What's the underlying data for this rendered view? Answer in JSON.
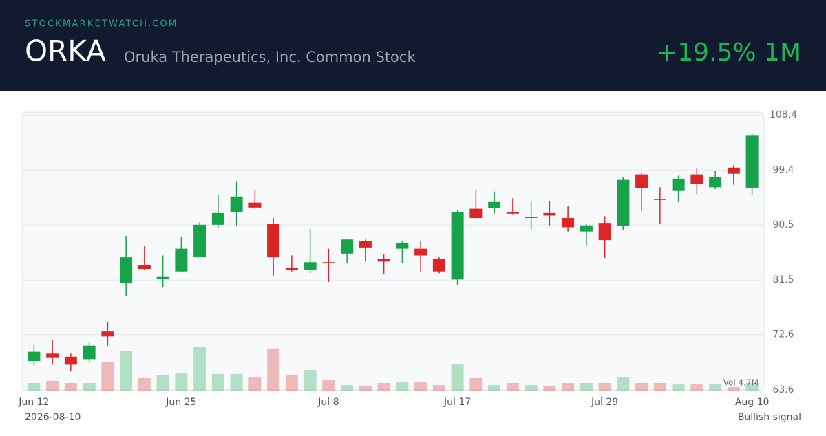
{
  "header": {
    "site": "STOCKMARKETWATCH.COM",
    "ticker": "ORKA",
    "name": "Oruka Therapeutics, Inc. Common Stock",
    "change": "+19.5% 1M"
  },
  "chart_data": {
    "type": "candlestick",
    "categories": [
      "Jun 12",
      null,
      null,
      null,
      null,
      null,
      null,
      null,
      "Jun 25",
      null,
      null,
      null,
      null,
      null,
      null,
      null,
      "Jul 8",
      null,
      null,
      null,
      null,
      null,
      null,
      "Jul 17",
      null,
      null,
      null,
      null,
      null,
      null,
      null,
      "Jul 29",
      null,
      null,
      null,
      null,
      null,
      null,
      null,
      "Aug 10"
    ],
    "open": [
      68.3,
      69.5,
      69.0,
      68.6,
      73.1,
      81.0,
      83.9,
      81.7,
      82.9,
      85.3,
      90.5,
      92.5,
      94.1,
      90.7,
      83.5,
      83.1,
      84.4,
      85.8,
      87.9,
      84.9,
      86.6,
      86.6,
      84.9,
      81.6,
      93.1,
      93.2,
      92.5,
      91.6,
      92.4,
      91.6,
      89.4,
      90.8,
      90.3,
      98.7,
      94.7,
      96.0,
      98.7,
      96.6,
      99.8,
      96.5
    ],
    "high": [
      71.0,
      71.7,
      69.5,
      71.3,
      74.7,
      88.7,
      87.0,
      85.5,
      88.5,
      90.9,
      95.3,
      97.6,
      96.1,
      91.6,
      85.5,
      89.8,
      86.6,
      88.2,
      88.1,
      85.7,
      87.8,
      87.9,
      85.3,
      92.9,
      96.2,
      95.9,
      94.8,
      94.2,
      94.4,
      93.5,
      90.6,
      91.9,
      98.3,
      98.9,
      96.6,
      98.5,
      99.7,
      99.3,
      100.2,
      105.3
    ],
    "low": [
      67.6,
      67.7,
      66.6,
      68.0,
      70.8,
      78.9,
      83.1,
      80.4,
      82.8,
      85.2,
      90.0,
      90.3,
      93.1,
      82.2,
      82.9,
      82.6,
      81.2,
      84.2,
      84.5,
      82.5,
      84.2,
      82.9,
      82.6,
      80.7,
      91.5,
      92.3,
      92.2,
      89.8,
      90.4,
      89.4,
      87.1,
      85.1,
      89.6,
      92.7,
      90.6,
      94.2,
      95.5,
      96.3,
      97.0,
      95.4
    ],
    "close": [
      69.8,
      68.9,
      67.7,
      70.8,
      72.3,
      85.2,
      83.3,
      82.0,
      86.6,
      90.5,
      92.4,
      95.1,
      93.3,
      85.2,
      83.1,
      84.4,
      84.3,
      88.1,
      86.8,
      84.5,
      87.5,
      85.5,
      82.9,
      92.6,
      91.6,
      94.2,
      92.3,
      91.8,
      92.0,
      90.1,
      90.4,
      88.0,
      97.8,
      96.5,
      94.6,
      98.0,
      97.1,
      98.3,
      98.8,
      105.0
    ],
    "volume": [
      4.7,
      6.0,
      4.7,
      4.7,
      17.5,
      24.4,
      7.7,
      9.4,
      10.7,
      27.3,
      10.3,
      10.3,
      8.5,
      26.1,
      9.4,
      12.8,
      6.4,
      3.4,
      3.0,
      4.7,
      5.1,
      5.1,
      3.4,
      16.2,
      8.1,
      3.4,
      4.7,
      3.4,
      3.0,
      4.7,
      4.7,
      4.7,
      8.5,
      4.7,
      4.7,
      3.8,
      3.8,
      4.3,
      2.1,
      4.7
    ],
    "volume_label": "Vol 4.7M",
    "up_color": "#16a34a",
    "down_color": "#dc2626",
    "ylim": [
      63.6,
      108.4
    ],
    "yticks": [
      63.6,
      72.6,
      81.5,
      90.5,
      99.4,
      108.4
    ],
    "grid": true
  },
  "footer": {
    "date": "2026-08-10",
    "signal": "Bullish signal"
  }
}
